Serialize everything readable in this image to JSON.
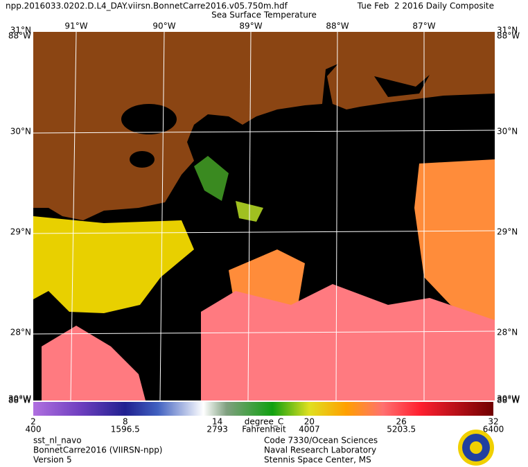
{
  "header": {
    "file_name": "npp.2016033.0202.D.L4_DAY.viirsn.BonnetCarre2016.v05.750m.hdf",
    "date": "Tue Feb  2 2016 Daily Composite",
    "subtitle": "Sea Surface Temperature"
  },
  "map": {
    "longitude_labels": [
      "91°W",
      "90°W",
      "89°W",
      "88°W",
      "87°W"
    ],
    "latitude_labels": [
      "30°N",
      "29°N",
      "28°N"
    ],
    "corner_labels": {
      "top_lat": "31°N",
      "top_lon": "88°W",
      "bottom_lat": "30°W",
      "bottom_lon": "88°W"
    }
  },
  "colorbar": {
    "celsius_ticks": [
      2,
      8,
      14,
      20,
      26,
      32
    ],
    "fahrenheit_ticks": [
      400,
      1596.5,
      2793,
      4007,
      5203.5,
      6400
    ],
    "celsius_unit": "degree_C",
    "fahrenheit_unit": "Fahrenheit"
  },
  "footer": {
    "left": [
      "sst_nl_navo",
      "BonnetCarre2016 (VIIRSN-npp)",
      "Version 5"
    ],
    "center": [
      "Code 7330/Ocean Sciences",
      "Naval Research Laboratory",
      "Stennis Space Center, MS"
    ]
  }
}
